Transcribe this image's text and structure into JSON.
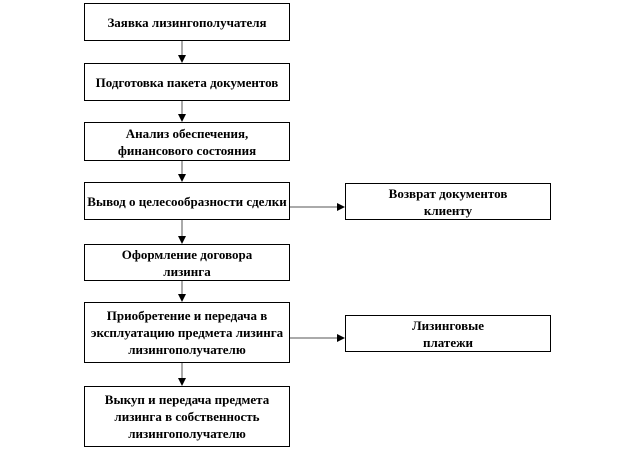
{
  "steps": [
    "Заявка лизингополучателя",
    "Подготовка пакета документов",
    "Анализ обеспечения, финансового состояния",
    "Вывод о целесообразности сделки",
    "Оформление договора лизинга",
    "Приобретение и передача в эксплуатацию предмета лизинга лизингополучателю",
    "Выкуп и передача предмета лизинга в собственность лизингополучателю"
  ],
  "side": [
    "Возврат документов клиенту",
    "Лизинговые платежи"
  ]
}
